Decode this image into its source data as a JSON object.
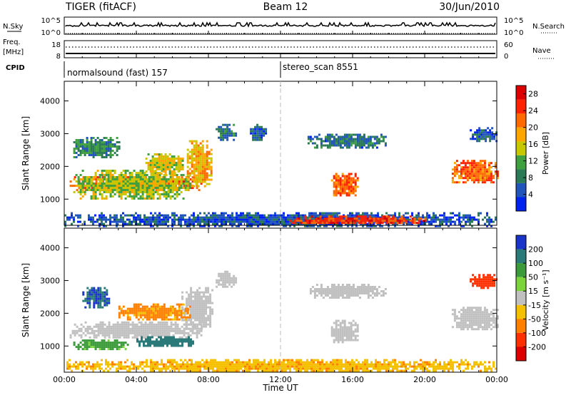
{
  "header": {
    "radar": "TIGER (fitACF)",
    "beam": "Beam 12",
    "date": "30/Jun/2010"
  },
  "top_panels": {
    "nsky_label": "N.Sky",
    "nsearch_label": "N.Search",
    "nsky_ticks": [
      "10^5",
      "10^0"
    ],
    "nsearch_ticks": [
      "10^5",
      "10^0"
    ],
    "freq_label_1": "Freq.",
    "freq_label_2": "[MHz]",
    "freq_ticks": [
      "18",
      "8"
    ],
    "nave_label": "Nave",
    "nave_ticks": [
      "60",
      "0"
    ],
    "cpid_label": "CPID",
    "cpid_segments": [
      {
        "label": "normalsound (fast) 157",
        "start_hour": 0
      },
      {
        "label": "stereo_scan 8551",
        "start_hour": 12
      }
    ]
  },
  "colors": {
    "power_scale": [
      "#0022ee",
      "#2255bb",
      "#2a7a55",
      "#3fa040",
      "#c8c800",
      "#ffa500",
      "#ff6a00",
      "#ff2200",
      "#dd0000"
    ],
    "velocity_scale": [
      "#1a33c8",
      "#2a7a7a",
      "#3b9b3b",
      "#7ad43a",
      "#c0c0c0",
      "#f5c000",
      "#ff8000",
      "#ff3000",
      "#dd0000"
    ]
  },
  "chart_data": [
    {
      "type": "heatmap",
      "quantity": "power",
      "xlabel": "Time UT",
      "ylabel": "Slant Range [km]",
      "xlim": [
        0,
        24
      ],
      "ylim": [
        200,
        4600
      ],
      "x_ticks": [
        "00:00",
        "04:00",
        "08:00",
        "12:00",
        "16:00",
        "20:00",
        "00:00"
      ],
      "y_ticks": [
        1000,
        2000,
        3000,
        4000
      ],
      "colorbar_label": "Power [dB]",
      "colorbar_ticks": [
        4,
        8,
        12,
        16,
        20,
        24,
        28
      ],
      "colorbar_range": [
        0,
        30
      ],
      "regions": [
        {
          "t0": 0.3,
          "t1": 7.6,
          "r0": 1250,
          "r1": 1700,
          "value": 23
        },
        {
          "t0": 0.5,
          "t1": 7.0,
          "r0": 1050,
          "r1": 1900,
          "value": 14
        },
        {
          "t0": 6.8,
          "t1": 8.2,
          "r0": 1400,
          "r1": 2800,
          "value": 18
        },
        {
          "t0": 4.5,
          "t1": 6.6,
          "r0": 1800,
          "r1": 2400,
          "value": 16
        },
        {
          "t0": 0.5,
          "t1": 3.0,
          "r0": 2300,
          "r1": 2900,
          "value": 9
        },
        {
          "t0": 8.4,
          "t1": 9.5,
          "r0": 2800,
          "r1": 3300,
          "value": 8
        },
        {
          "t0": 10.3,
          "t1": 11.2,
          "r0": 2800,
          "r1": 3300,
          "value": 6
        },
        {
          "t0": 13.5,
          "t1": 17.8,
          "r0": 2600,
          "r1": 3000,
          "value": 7
        },
        {
          "t0": 14.8,
          "t1": 16.3,
          "r0": 1100,
          "r1": 1800,
          "value": 22
        },
        {
          "t0": 21.5,
          "t1": 24.0,
          "r0": 1500,
          "r1": 2200,
          "value": 22
        },
        {
          "t0": 22.5,
          "t1": 24.0,
          "r0": 2800,
          "r1": 3200,
          "value": 6
        },
        {
          "t0": 0.0,
          "t1": 24.0,
          "r0": 200,
          "r1": 600,
          "value": 5
        },
        {
          "t0": 12.5,
          "t1": 20.0,
          "r0": 250,
          "r1": 500,
          "value": 24
        }
      ]
    },
    {
      "type": "heatmap",
      "quantity": "velocity",
      "xlabel": "Time UT",
      "ylabel": "Slant Range [km]",
      "xlim": [
        0,
        24
      ],
      "ylim": [
        200,
        4600
      ],
      "x_ticks": [
        "00:00",
        "04:00",
        "08:00",
        "12:00",
        "16:00",
        "20:00",
        "00:00"
      ],
      "y_ticks": [
        1000,
        2000,
        3000,
        4000
      ],
      "colorbar_label": "Velocity [m s⁻¹]",
      "colorbar_ticks": [
        200,
        100,
        50,
        15,
        -15,
        -50,
        -100,
        -200
      ],
      "regions": [
        {
          "t0": 0.3,
          "t1": 7.6,
          "r0": 1250,
          "r1": 1750,
          "value": 0
        },
        {
          "t0": 4.0,
          "t1": 7.2,
          "r0": 1000,
          "r1": 1300,
          "value": 150
        },
        {
          "t0": 0.5,
          "t1": 3.5,
          "r0": 900,
          "r1": 1200,
          "value": 60
        },
        {
          "t0": 6.5,
          "t1": 8.2,
          "r0": 1500,
          "r1": 2800,
          "value": 0
        },
        {
          "t0": 1.0,
          "t1": 2.5,
          "r0": 2200,
          "r1": 2800,
          "value": 200
        },
        {
          "t0": 3.0,
          "t1": 7.0,
          "r0": 1800,
          "r1": 2300,
          "value": -60
        },
        {
          "t0": 8.4,
          "t1": 9.5,
          "r0": 2800,
          "r1": 3300,
          "value": 0
        },
        {
          "t0": 13.5,
          "t1": 17.8,
          "r0": 2500,
          "r1": 2900,
          "value": 0
        },
        {
          "t0": 14.8,
          "t1": 16.3,
          "r0": 1100,
          "r1": 1800,
          "value": 0
        },
        {
          "t0": 21.5,
          "t1": 24.0,
          "r0": 1500,
          "r1": 2200,
          "value": 0
        },
        {
          "t0": 22.5,
          "t1": 24.0,
          "r0": 2800,
          "r1": 3200,
          "value": -150
        },
        {
          "t0": 0.0,
          "t1": 24.0,
          "r0": 250,
          "r1": 600,
          "value": -40
        }
      ]
    }
  ]
}
